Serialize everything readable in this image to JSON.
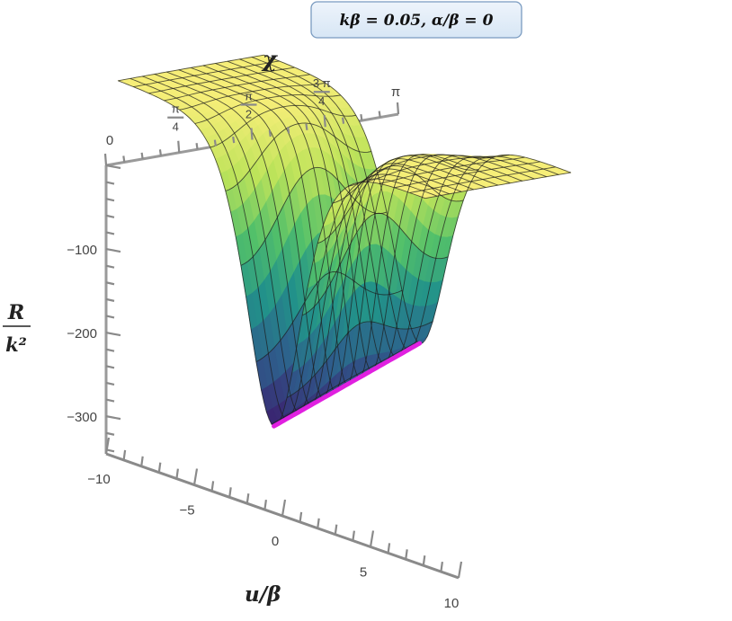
{
  "chart_data": {
    "type": "surface3d",
    "title": "kβ = 0.05,   α/β = 0",
    "xlabel": "u/β",
    "ylabel": "χ",
    "zlabel_num": "R",
    "zlabel_den": "k²",
    "x_range": [
      -10,
      10
    ],
    "y_range": [
      0,
      3.14159
    ],
    "z_range": [
      -345,
      0
    ],
    "x_ticks": [
      "−10",
      "−5",
      "0",
      "5",
      "10"
    ],
    "x_tick_values": [
      -10,
      -5,
      0,
      5,
      10
    ],
    "y_ticks": [
      {
        "value": 0,
        "label": "0"
      },
      {
        "value": 0.7854,
        "num": "π",
        "den": "4"
      },
      {
        "value": 1.5708,
        "num": "π",
        "den": "2"
      },
      {
        "value": 2.3562,
        "num": "3 π",
        "den": "4"
      },
      {
        "value": 3.14159,
        "label": "π"
      }
    ],
    "z_ticks": [
      "−100",
      "−200",
      "−300"
    ],
    "z_tick_values": [
      -100,
      -200,
      -300
    ],
    "surface_mesh": {
      "u_lines": 21,
      "chi_lines": 13
    },
    "minimum_curve": {
      "description_color": "#e020e0",
      "depth_at_chi_0": -335,
      "depth_at_chi_pi": -268
    },
    "colormap": [
      "#3b1f6e",
      "#2e5e8c",
      "#22928a",
      "#52c06a",
      "#bde35a",
      "#f6ee78"
    ]
  }
}
